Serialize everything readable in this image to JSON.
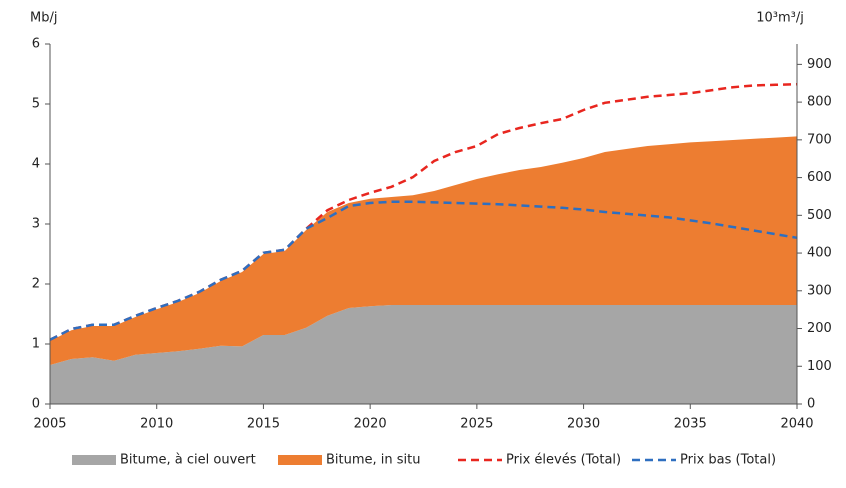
{
  "chart_data": {
    "type": "area",
    "y_label": "Mb/j",
    "y2_label": "10³m³/j",
    "x": [
      2005,
      2006,
      2007,
      2008,
      2009,
      2010,
      2011,
      2012,
      2013,
      2014,
      2015,
      2016,
      2017,
      2018,
      2019,
      2020,
      2021,
      2022,
      2023,
      2024,
      2025,
      2026,
      2027,
      2028,
      2029,
      2030,
      2031,
      2032,
      2033,
      2034,
      2035,
      2036,
      2037,
      2038,
      2039,
      2040
    ],
    "xlim": [
      2005,
      2040
    ],
    "xticks": [
      2005,
      2010,
      2015,
      2020,
      2025,
      2030,
      2035,
      2040
    ],
    "ylim": [
      0,
      6
    ],
    "yticks": [
      0,
      1,
      2,
      3,
      4,
      5,
      6
    ],
    "y2lim": [
      0,
      954
    ],
    "y2ticks": [
      0,
      100,
      200,
      300,
      400,
      500,
      600,
      700,
      800,
      900
    ],
    "series": [
      {
        "name": "Bitume, à ciel ouvert",
        "type": "area",
        "color": "#a6a6a6",
        "values": [
          0.65,
          0.75,
          0.78,
          0.72,
          0.82,
          0.85,
          0.88,
          0.92,
          0.97,
          0.96,
          1.15,
          1.15,
          1.27,
          1.47,
          1.6,
          1.63,
          1.65,
          1.65,
          1.65,
          1.65,
          1.65,
          1.65,
          1.65,
          1.65,
          1.65,
          1.65,
          1.65,
          1.65,
          1.65,
          1.65,
          1.65,
          1.65,
          1.65,
          1.65,
          1.65,
          1.65
        ]
      },
      {
        "name": "Bitume, in situ",
        "type": "area",
        "color": "#ed7d31",
        "values": [
          0.4,
          0.48,
          0.52,
          0.58,
          0.63,
          0.73,
          0.82,
          0.93,
          1.08,
          1.24,
          1.35,
          1.4,
          1.63,
          1.73,
          1.75,
          1.79,
          1.8,
          1.83,
          1.9,
          2.0,
          2.1,
          2.18,
          2.25,
          2.3,
          2.37,
          2.45,
          2.55,
          2.6,
          2.65,
          2.68,
          2.71,
          2.73,
          2.75,
          2.77,
          2.79,
          2.81
        ]
      },
      {
        "name": "Prix élevés (Total)",
        "type": "line",
        "color": "#e8261f",
        "values": [
          1.07,
          1.25,
          1.32,
          1.32,
          1.47,
          1.6,
          1.72,
          1.87,
          2.07,
          2.22,
          2.52,
          2.57,
          2.92,
          3.23,
          3.4,
          3.52,
          3.62,
          3.78,
          4.05,
          4.2,
          4.3,
          4.5,
          4.6,
          4.68,
          4.75,
          4.9,
          5.02,
          5.07,
          5.12,
          5.15,
          5.18,
          5.23,
          5.28,
          5.31,
          5.32,
          5.33
        ]
      },
      {
        "name": "Prix bas (Total)",
        "type": "line",
        "color": "#2e6fc0",
        "values": [
          1.07,
          1.25,
          1.32,
          1.32,
          1.47,
          1.6,
          1.72,
          1.87,
          2.07,
          2.22,
          2.52,
          2.57,
          2.92,
          3.1,
          3.3,
          3.35,
          3.37,
          3.37,
          3.36,
          3.35,
          3.34,
          3.33,
          3.31,
          3.29,
          3.27,
          3.24,
          3.2,
          3.17,
          3.14,
          3.11,
          3.06,
          3.01,
          2.95,
          2.89,
          2.83,
          2.77
        ]
      }
    ]
  }
}
